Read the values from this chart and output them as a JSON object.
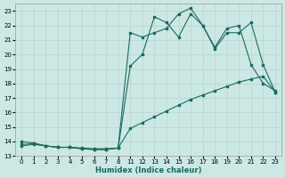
{
  "xlabel": "Humidex (Indice chaleur)",
  "bg_color": "#cce8e4",
  "line_color": "#1a6b5e",
  "grid_color": "#b8d4d0",
  "xlabels": [
    "0",
    "1",
    "2",
    "3",
    "4",
    "5",
    "6",
    "7",
    "8",
    "11",
    "12",
    "13",
    "14",
    "15",
    "16",
    "17",
    "18",
    "19",
    "20",
    "21",
    "22",
    "23"
  ],
  "ylim": [
    13,
    23.5
  ],
  "yticks": [
    13,
    14,
    15,
    16,
    17,
    18,
    19,
    20,
    21,
    22,
    23
  ],
  "line1_y": [
    13.7,
    13.8,
    13.7,
    13.6,
    13.6,
    13.55,
    13.5,
    13.5,
    13.55,
    14.9,
    15.3,
    15.7,
    16.1,
    16.5,
    16.9,
    17.2,
    17.5,
    17.8,
    18.1,
    18.3,
    18.5,
    17.4
  ],
  "line2_y": [
    14.0,
    13.9,
    13.7,
    13.6,
    13.6,
    13.5,
    13.45,
    13.45,
    13.55,
    19.2,
    20.0,
    22.6,
    22.2,
    21.2,
    22.8,
    22.0,
    20.5,
    21.8,
    22.0,
    19.3,
    18.0,
    17.5
  ],
  "line3_y": [
    13.8,
    13.85,
    13.7,
    13.6,
    13.6,
    13.5,
    13.45,
    13.45,
    13.55,
    21.5,
    21.2,
    21.5,
    21.8,
    22.8,
    23.2,
    22.0,
    20.4,
    21.5,
    21.5,
    22.2,
    19.3,
    17.4
  ]
}
